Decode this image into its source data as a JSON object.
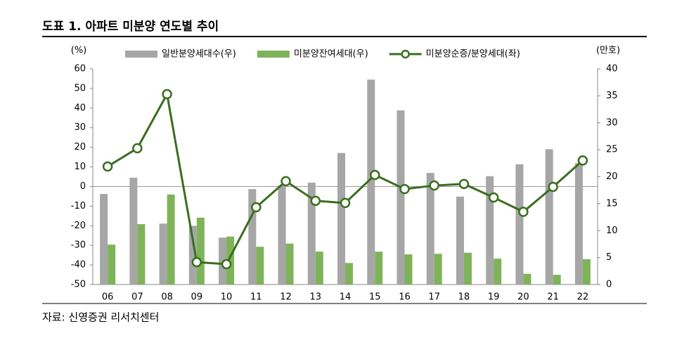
{
  "chart_data": {
    "type": "combo",
    "title": "도표 1. 아파트 미분양 연도별 추이",
    "source": "자료: 신영증권 리서치센터",
    "y_label": "(%)",
    "y2_label": "(만호)",
    "categories": [
      "06",
      "07",
      "08",
      "09",
      "10",
      "11",
      "12",
      "13",
      "14",
      "15",
      "16",
      "17",
      "18",
      "19",
      "20",
      "21",
      "22"
    ],
    "ylim": [
      -50,
      60
    ],
    "yticks": [
      -50,
      -40,
      -30,
      -20,
      -10,
      0,
      10,
      20,
      30,
      40,
      50,
      60
    ],
    "y2lim": [
      0,
      40
    ],
    "y2ticks": [
      0,
      5,
      10,
      15,
      20,
      25,
      30,
      35,
      40
    ],
    "series": [
      {
        "name": "일반분양세대수(우)",
        "type": "bar",
        "axis": "y2",
        "color": "#a6a6a6",
        "values": [
          16.8,
          19.8,
          11.3,
          10.9,
          8.7,
          17.7,
          18.4,
          18.9,
          24.4,
          38.0,
          32.3,
          20.7,
          16.3,
          20.1,
          22.3,
          25.1,
          22.5
        ]
      },
      {
        "name": "미분양잔여세대(우)",
        "type": "bar",
        "axis": "y2",
        "color": "#7fb35a",
        "values": [
          7.4,
          11.2,
          16.7,
          12.4,
          8.9,
          7.0,
          7.6,
          6.1,
          4.0,
          6.1,
          5.6,
          5.7,
          5.9,
          4.8,
          2.0,
          1.8,
          4.7
        ]
      },
      {
        "name": "미분양순증/분양세대(좌)",
        "type": "line",
        "axis": "y",
        "color": "#3a6e1f",
        "values": [
          10.2,
          19.5,
          47.1,
          -38.6,
          -39.6,
          -10.6,
          2.7,
          -7.3,
          -8.4,
          5.9,
          -1.3,
          0.5,
          1.3,
          -5.6,
          -12.9,
          -0.2,
          13.3
        ],
        "labeled_points": [
          20,
          22
        ]
      }
    ]
  }
}
